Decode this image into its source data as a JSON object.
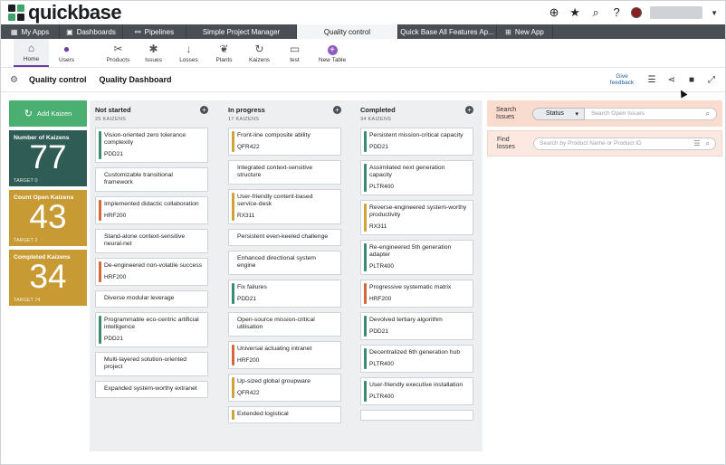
{
  "brand": {
    "name": "quickbase"
  },
  "app_tabs": [
    {
      "label": "My Apps",
      "icon": "grid-icon"
    },
    {
      "label": "Dashboards",
      "icon": "dashboard-icon"
    },
    {
      "label": "Pipelines",
      "icon": "pipelines-icon"
    },
    {
      "label": "Simple Project Manager"
    },
    {
      "label": "Quality control",
      "active": true
    },
    {
      "label": "Quick Base All Features Ap..."
    },
    {
      "label": "New App",
      "icon": "new-app-icon"
    }
  ],
  "table_nav": [
    {
      "label": "Home",
      "icon": "home-icon",
      "active": true
    },
    {
      "label": "Users",
      "icon": "users-icon"
    },
    {
      "label": "Products",
      "icon": "tools-icon"
    },
    {
      "label": "Issues",
      "icon": "bug-icon"
    },
    {
      "label": "Losses",
      "icon": "arrow-down-icon"
    },
    {
      "label": "Plants",
      "icon": "leaf-icon"
    },
    {
      "label": "Kaizens",
      "icon": "refresh-icon"
    },
    {
      "label": "test",
      "icon": "folder-icon"
    },
    {
      "label": "New Table",
      "icon": "plus-circle-icon"
    }
  ],
  "page": {
    "table_name": "Quality control",
    "page_name": "Quality Dashboard",
    "feedback_line1": "Give",
    "feedback_line2": "feedback"
  },
  "add_button": "Add Kaizen",
  "kpis": [
    {
      "label": "Number of Kaizens",
      "value": "77",
      "target": "TARGET 0",
      "color": "#2f5d55"
    },
    {
      "label": "Count Open Kaizens",
      "value": "43",
      "target": "TARGET 2",
      "color": "#c89a33"
    },
    {
      "label": "Completed Kaizens",
      "value": "34",
      "target": "TARGET 74",
      "color": "#c89a33"
    }
  ],
  "columns": [
    {
      "title": "Not started",
      "count": "25 KAIZENS",
      "cards": [
        {
          "title": "Vision-oriented zero tolerance complexity",
          "code": "PDD21",
          "color": "#3d8b6e"
        },
        {
          "title": "Customizable transitional framework",
          "code": "",
          "color": ""
        },
        {
          "title": "Implemented didactic collaboration",
          "code": "HRF200",
          "color": "#d4683b"
        },
        {
          "title": "Stand-alone context-sensitive neural-net",
          "code": "",
          "color": ""
        },
        {
          "title": "De-engineered non-volatile success",
          "code": "HRF200",
          "color": "#d4683b"
        },
        {
          "title": "Diverse modular leverage",
          "code": "",
          "color": ""
        },
        {
          "title": "Programmable eco-centric artificial intelligence",
          "code": "PDD21",
          "color": "#3d8b6e"
        },
        {
          "title": "Multi-layered solution-oriented project",
          "code": "",
          "color": ""
        },
        {
          "title": "Expanded system-worthy extranet",
          "code": "",
          "color": ""
        }
      ]
    },
    {
      "title": "In progress",
      "count": "17 KAIZENS",
      "cards": [
        {
          "title": "Front-line composite ability",
          "code": "QFR422",
          "color": "#d0a23a"
        },
        {
          "title": "Integrated context-sensitive structure",
          "code": "",
          "color": ""
        },
        {
          "title": "User-friendly content-based service-desk",
          "code": "RX311",
          "color": "#d0a23a"
        },
        {
          "title": "Persistent even-keeled challenge",
          "code": "",
          "color": ""
        },
        {
          "title": "Enhanced directional system engine",
          "code": "",
          "color": ""
        },
        {
          "title": "Fix failures",
          "code": "PDD21",
          "color": "#3d8b6e"
        },
        {
          "title": "Open-source mission-critical utilisation",
          "code": "",
          "color": ""
        },
        {
          "title": "Universal actuating intranet",
          "code": "HRF200",
          "color": "#d4683b"
        },
        {
          "title": "Up-sized global groupware",
          "code": "QFR422",
          "color": "#d0a23a"
        },
        {
          "title": "Extended logistical",
          "code": "",
          "color": "#d0a23a"
        }
      ]
    },
    {
      "title": "Completed",
      "count": "34 KAIZENS",
      "cards": [
        {
          "title": "Persistent mission-critical capacity",
          "code": "PDD21",
          "color": "#3d8b6e"
        },
        {
          "title": "Assimilated next generation capacity",
          "code": "PLTR400",
          "color": "#3d8b6e"
        },
        {
          "title": "Reverse-engineered system-worthy productivity",
          "code": "RX311",
          "color": "#d0a23a"
        },
        {
          "title": "Re-engineered 5th generation adapter",
          "code": "PLTR400",
          "color": "#3d8b6e"
        },
        {
          "title": "Progressive systematic matrix",
          "code": "HRF200",
          "color": "#d4683b"
        },
        {
          "title": "Devolved tertiary algorithm",
          "code": "PDD21",
          "color": "#3d8b6e"
        },
        {
          "title": "Decentralized 6th generation hub",
          "code": "PLTR400",
          "color": "#3d8b6e"
        },
        {
          "title": "User-friendly executive installation",
          "code": "PLTR400",
          "color": "#3d8b6e"
        },
        {
          "title": "",
          "code": "",
          "color": ""
        }
      ]
    }
  ],
  "search": {
    "label_line1": "Search",
    "label_line2": "Issues",
    "select_value": "Status",
    "placeholder": "Search Open Issues"
  },
  "find": {
    "label_line1": "Find",
    "label_line2": "losses",
    "placeholder": "Search by Product Name or Product ID"
  }
}
